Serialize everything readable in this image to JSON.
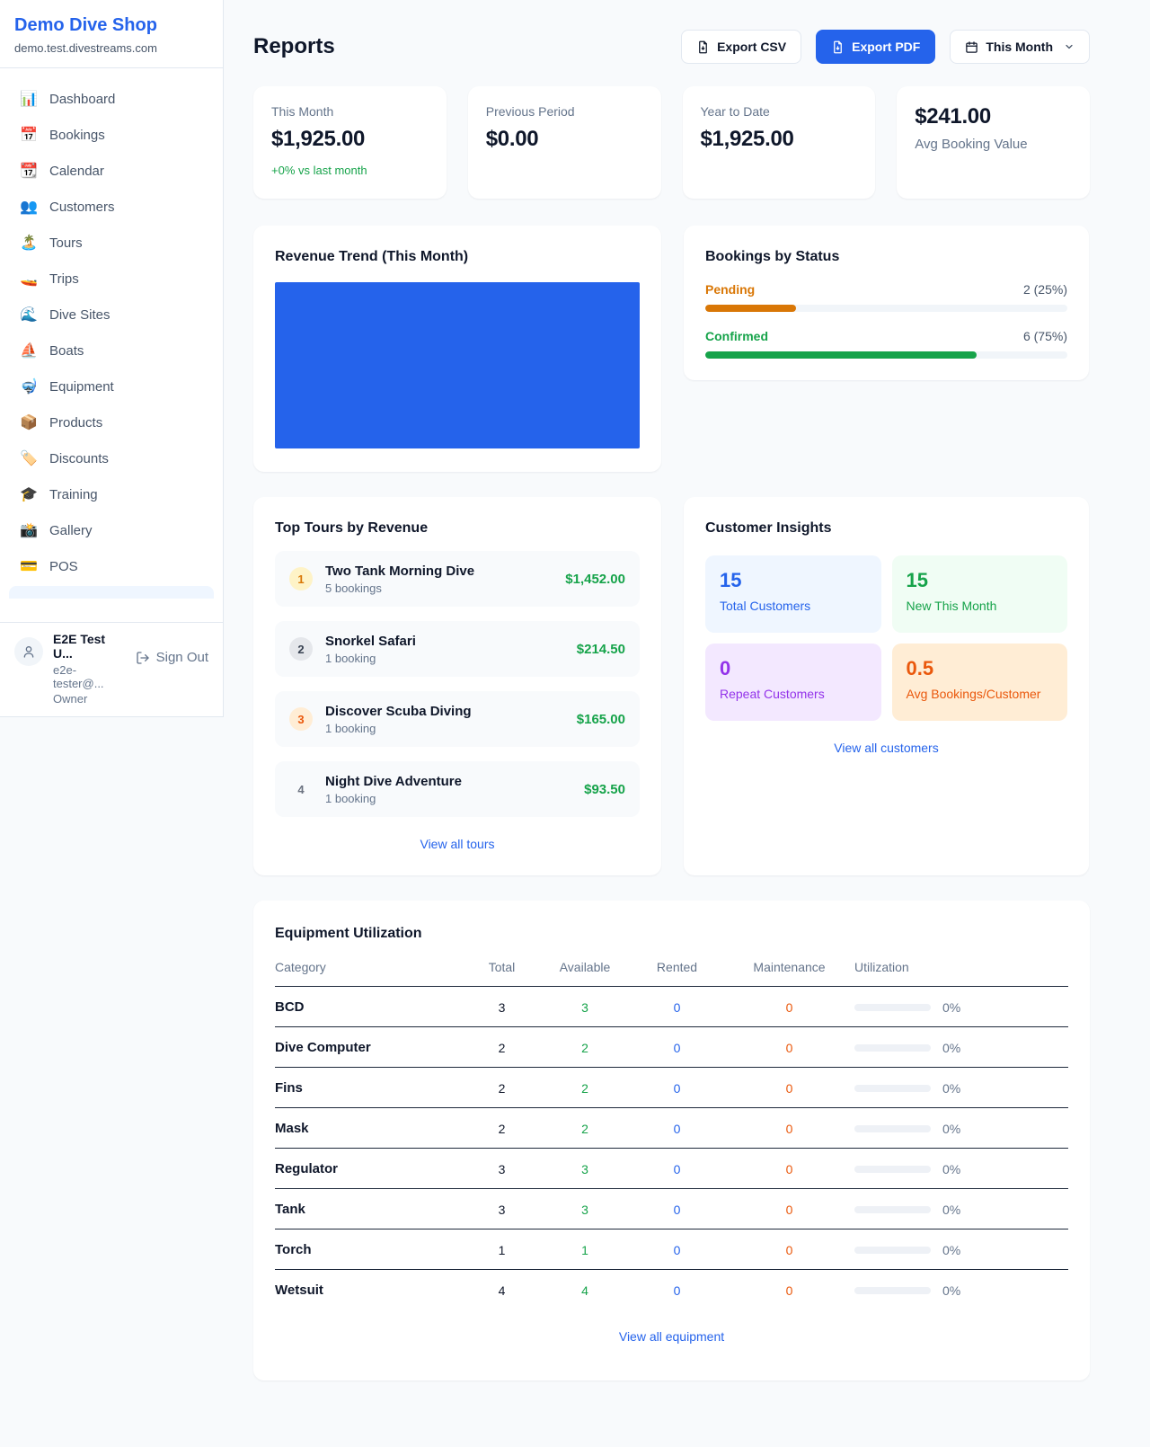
{
  "sidebar": {
    "title": "Demo Dive Shop",
    "subtitle": "demo.test.divestreams.com",
    "nav": [
      {
        "icon": "📊",
        "label": "Dashboard"
      },
      {
        "icon": "📅",
        "label": "Bookings"
      },
      {
        "icon": "📆",
        "label": "Calendar"
      },
      {
        "icon": "👥",
        "label": "Customers"
      },
      {
        "icon": "🏝️",
        "label": "Tours"
      },
      {
        "icon": "🚤",
        "label": "Trips"
      },
      {
        "icon": "🌊",
        "label": "Dive Sites"
      },
      {
        "icon": "⛵",
        "label": "Boats"
      },
      {
        "icon": "🤿",
        "label": "Equipment"
      },
      {
        "icon": "📦",
        "label": "Products"
      },
      {
        "icon": "🏷️",
        "label": "Discounts"
      },
      {
        "icon": "🎓",
        "label": "Training"
      },
      {
        "icon": "📸",
        "label": "Gallery"
      },
      {
        "icon": "💳",
        "label": "POS"
      }
    ],
    "user": {
      "name": "E2E Test U...",
      "email": "e2e-tester@...",
      "role": "Owner",
      "sign_out": "Sign Out"
    }
  },
  "header": {
    "title": "Reports",
    "export_csv": "Export CSV",
    "export_pdf": "Export PDF",
    "period": "This Month",
    "primary_color": "#2563eb"
  },
  "stats": [
    {
      "label": "This Month",
      "value": "$1,925.00",
      "delta": "+0% vs last month",
      "delta_color": "#16a34a"
    },
    {
      "label": "Previous Period",
      "value": "$0.00"
    },
    {
      "label": "Year to Date",
      "value": "$1,925.00"
    },
    {
      "label": "Avg Booking Value",
      "value": "$241.00"
    }
  ],
  "revenue_trend": {
    "title": "Revenue Trend (This Month)",
    "bar_color": "#2563eb"
  },
  "bookings_by_status": {
    "title": "Bookings by Status",
    "rows": [
      {
        "label": "Pending",
        "value": "2 (25%)",
        "pct": 25,
        "color": "#d97706"
      },
      {
        "label": "Confirmed",
        "value": "6 (75%)",
        "pct": 75,
        "color": "#16a34a"
      }
    ]
  },
  "top_tours": {
    "title": "Top Tours by Revenue",
    "rows": [
      {
        "rank": "1",
        "name": "Two Tank Morning Dive",
        "bookings": "5 bookings",
        "revenue": "$1,452.00"
      },
      {
        "rank": "2",
        "name": "Snorkel Safari",
        "bookings": "1 booking",
        "revenue": "$214.50"
      },
      {
        "rank": "3",
        "name": "Discover Scuba Diving",
        "bookings": "1 booking",
        "revenue": "$165.00"
      },
      {
        "rank": "4",
        "name": "Night Dive Adventure",
        "bookings": "1 booking",
        "revenue": "$93.50"
      }
    ],
    "link": "View all tours",
    "revenue_color": "#16a34a"
  },
  "customer_insights": {
    "title": "Customer Insights",
    "tiles": [
      {
        "value": "15",
        "label": "Total Customers",
        "color": "#2563eb",
        "bg": "#eff6ff"
      },
      {
        "value": "15",
        "label": "New This Month",
        "color": "#16a34a",
        "bg": "#f0fdf4"
      },
      {
        "value": "0",
        "label": "Repeat Customers",
        "color": "#9333ea",
        "bg": "#f3e8ff"
      },
      {
        "value": "0.5",
        "label": "Avg Bookings/Customer",
        "color": "#ea580c",
        "bg": "#ffedd5"
      }
    ],
    "link": "View all customers"
  },
  "equipment": {
    "title": "Equipment Utilization",
    "columns": [
      "Category",
      "Total",
      "Available",
      "Rented",
      "Maintenance",
      "Utilization"
    ],
    "column_colors": {
      "available": "#16a34a",
      "rented": "#2563eb",
      "maintenance": "#ea580c"
    },
    "rows": [
      {
        "category": "BCD",
        "total": "3",
        "available": "3",
        "rented": "0",
        "maintenance": "0",
        "utilization": "0%"
      },
      {
        "category": "Dive Computer",
        "total": "2",
        "available": "2",
        "rented": "0",
        "maintenance": "0",
        "utilization": "0%"
      },
      {
        "category": "Fins",
        "total": "2",
        "available": "2",
        "rented": "0",
        "maintenance": "0",
        "utilization": "0%"
      },
      {
        "category": "Mask",
        "total": "2",
        "available": "2",
        "rented": "0",
        "maintenance": "0",
        "utilization": "0%"
      },
      {
        "category": "Regulator",
        "total": "3",
        "available": "3",
        "rented": "0",
        "maintenance": "0",
        "utilization": "0%"
      },
      {
        "category": "Tank",
        "total": "3",
        "available": "3",
        "rented": "0",
        "maintenance": "0",
        "utilization": "0%"
      },
      {
        "category": "Torch",
        "total": "1",
        "available": "1",
        "rented": "0",
        "maintenance": "0",
        "utilization": "0%"
      },
      {
        "category": "Wetsuit",
        "total": "4",
        "available": "4",
        "rented": "0",
        "maintenance": "0",
        "utilization": "0%"
      }
    ],
    "link": "View all equipment"
  }
}
